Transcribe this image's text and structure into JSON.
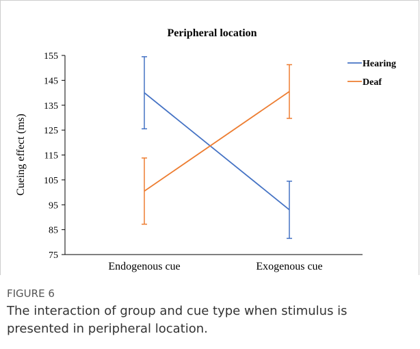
{
  "chart_data": {
    "type": "line",
    "title": "Peripheral location",
    "y_label": "Cueing effect (ms)",
    "categories": [
      "Endogenous cue",
      "Exogenous cue"
    ],
    "series": [
      {
        "name": "Hearing",
        "color": "#4472c4",
        "values": [
          140,
          93
        ],
        "errors": [
          14.5,
          11.5
        ]
      },
      {
        "name": "Deaf",
        "color": "#ed7d31",
        "values": [
          100.5,
          140.5
        ],
        "errors": [
          13.3,
          10.8
        ]
      }
    ],
    "ylim": [
      75,
      155
    ],
    "yticks": [
      75,
      85,
      95,
      105,
      115,
      125,
      135,
      145,
      155
    ],
    "legend": "right"
  },
  "caption": {
    "label": "FIGURE 6",
    "lines": [
      "The interaction of group and cue type when stimulus is",
      "presented in peripheral location."
    ]
  }
}
